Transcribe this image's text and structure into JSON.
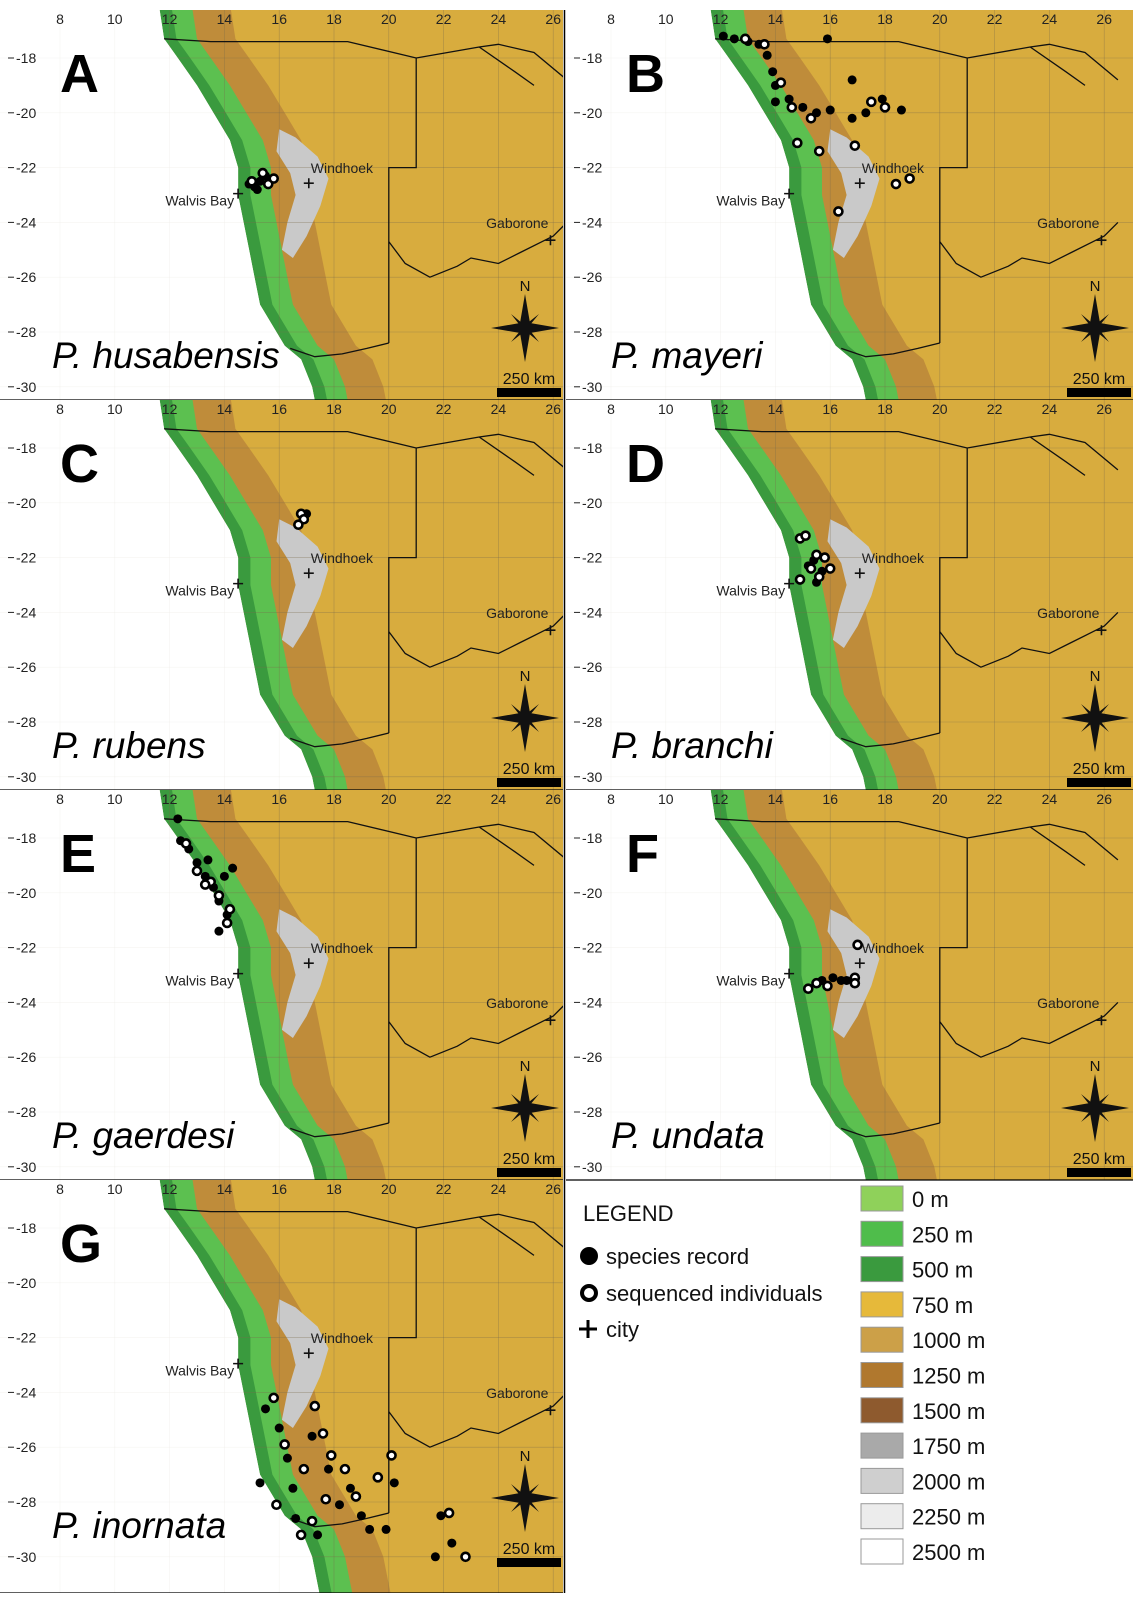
{
  "axes": {
    "xticks": [
      8,
      10,
      12,
      14,
      16,
      18,
      20,
      22,
      24,
      26
    ],
    "yticks": [
      -18,
      -20,
      -22,
      -24,
      -26,
      -28,
      -30
    ]
  },
  "cities": [
    {
      "name": "Windhoek",
      "lon": 17.08,
      "lat": -22.57
    },
    {
      "name": "Walvis Bay",
      "lon": 14.5,
      "lat": -22.95
    },
    {
      "name": "Gaborone",
      "lon": 25.9,
      "lat": -24.65
    }
  ],
  "north": "N",
  "scale_bar": "250 km",
  "panels": [
    {
      "letter": "A",
      "species": "P. husabensis",
      "records": [
        [
          14.9,
          -22.6
        ],
        [
          15.1,
          -22.7
        ],
        [
          15.3,
          -22.5
        ],
        [
          15.5,
          -22.3
        ],
        [
          15.2,
          -22.8
        ]
      ],
      "sequenced": [
        [
          15.4,
          -22.2
        ],
        [
          15.6,
          -22.6
        ],
        [
          15.8,
          -22.4
        ],
        [
          15.0,
          -22.5
        ]
      ]
    },
    {
      "letter": "B",
      "species": "P. mayeri",
      "records": [
        [
          12.1,
          -17.2
        ],
        [
          12.5,
          -17.3
        ],
        [
          13.0,
          -17.4
        ],
        [
          13.4,
          -17.5
        ],
        [
          13.7,
          -17.9
        ],
        [
          13.9,
          -18.5
        ],
        [
          14.0,
          -19.0
        ],
        [
          14.5,
          -19.5
        ],
        [
          15.0,
          -19.8
        ],
        [
          15.5,
          -20.0
        ],
        [
          16.0,
          -19.9
        ],
        [
          16.8,
          -20.2
        ],
        [
          17.3,
          -20.0
        ],
        [
          17.9,
          -19.5
        ],
        [
          18.6,
          -19.9
        ],
        [
          16.8,
          -18.8
        ],
        [
          15.9,
          -17.3
        ],
        [
          14.0,
          -19.6
        ]
      ],
      "sequenced": [
        [
          12.9,
          -17.3
        ],
        [
          13.6,
          -17.5
        ],
        [
          14.2,
          -18.9
        ],
        [
          14.6,
          -19.8
        ],
        [
          15.3,
          -20.2
        ],
        [
          14.8,
          -21.1
        ],
        [
          15.6,
          -21.4
        ],
        [
          16.9,
          -21.2
        ],
        [
          17.5,
          -19.6
        ],
        [
          18.0,
          -19.8
        ],
        [
          18.4,
          -22.6
        ],
        [
          18.9,
          -22.4
        ],
        [
          16.3,
          -23.6
        ]
      ]
    },
    {
      "letter": "C",
      "species": "P. rubens",
      "records": [
        [
          17.0,
          -20.4
        ]
      ],
      "sequenced": [
        [
          16.8,
          -20.4
        ],
        [
          16.9,
          -20.6
        ],
        [
          16.7,
          -20.8
        ]
      ]
    },
    {
      "letter": "D",
      "species": "P. branchi",
      "records": [
        [
          15.2,
          -22.3
        ],
        [
          15.4,
          -22.1
        ],
        [
          15.7,
          -22.5
        ],
        [
          15.5,
          -22.9
        ]
      ],
      "sequenced": [
        [
          14.9,
          -21.3
        ],
        [
          15.1,
          -21.2
        ],
        [
          15.5,
          -21.9
        ],
        [
          15.8,
          -22.0
        ],
        [
          15.3,
          -22.4
        ],
        [
          15.6,
          -22.7
        ],
        [
          14.9,
          -22.8
        ],
        [
          16.0,
          -22.4
        ]
      ]
    },
    {
      "letter": "E",
      "species": "P. gaerdesi",
      "records": [
        [
          12.3,
          -17.3
        ],
        [
          12.4,
          -18.1
        ],
        [
          12.7,
          -18.4
        ],
        [
          13.0,
          -18.9
        ],
        [
          13.3,
          -19.4
        ],
        [
          13.6,
          -19.8
        ],
        [
          13.8,
          -20.3
        ],
        [
          14.1,
          -20.8
        ],
        [
          13.4,
          -18.8
        ],
        [
          14.0,
          -19.4
        ],
        [
          14.3,
          -19.1
        ],
        [
          13.8,
          -21.4
        ]
      ],
      "sequenced": [
        [
          12.6,
          -18.2
        ],
        [
          13.0,
          -19.2
        ],
        [
          13.5,
          -19.6
        ],
        [
          13.8,
          -20.1
        ],
        [
          14.2,
          -20.6
        ],
        [
          14.1,
          -21.1
        ],
        [
          13.3,
          -19.7
        ]
      ]
    },
    {
      "letter": "F",
      "species": "P. undata",
      "records": [
        [
          15.7,
          -23.2
        ],
        [
          16.1,
          -23.1
        ],
        [
          16.6,
          -23.2
        ],
        [
          16.4,
          -23.2
        ]
      ],
      "sequenced": [
        [
          15.2,
          -23.5
        ],
        [
          15.5,
          -23.3
        ],
        [
          15.9,
          -23.4
        ],
        [
          17.0,
          -21.9
        ],
        [
          16.9,
          -23.1
        ],
        [
          16.9,
          -23.3
        ]
      ]
    },
    {
      "letter": "G",
      "species": "P. inornata",
      "records": [
        [
          15.3,
          -27.3
        ],
        [
          15.5,
          -24.6
        ],
        [
          16.0,
          -25.3
        ],
        [
          16.3,
          -26.4
        ],
        [
          16.5,
          -27.5
        ],
        [
          16.6,
          -28.6
        ],
        [
          17.2,
          -25.6
        ],
        [
          17.8,
          -26.8
        ],
        [
          18.2,
          -28.1
        ],
        [
          18.6,
          -27.5
        ],
        [
          19.0,
          -28.5
        ],
        [
          19.3,
          -29.0
        ],
        [
          20.2,
          -27.3
        ],
        [
          19.9,
          -29.0
        ],
        [
          21.9,
          -28.5
        ],
        [
          22.3,
          -29.5
        ],
        [
          21.7,
          -30.0
        ],
        [
          17.4,
          -29.2
        ]
      ],
      "sequenced": [
        [
          15.8,
          -24.2
        ],
        [
          16.2,
          -25.9
        ],
        [
          16.9,
          -26.8
        ],
        [
          17.3,
          -24.5
        ],
        [
          17.6,
          -25.5
        ],
        [
          17.9,
          -26.3
        ],
        [
          18.4,
          -26.8
        ],
        [
          17.7,
          -27.9
        ],
        [
          18.8,
          -27.8
        ],
        [
          19.6,
          -27.1
        ],
        [
          20.1,
          -26.3
        ],
        [
          16.8,
          -29.2
        ],
        [
          17.2,
          -28.7
        ],
        [
          22.2,
          -28.4
        ],
        [
          22.8,
          -30.0
        ],
        [
          15.9,
          -28.1
        ]
      ]
    }
  ],
  "legend": {
    "title": "LEGEND",
    "record": "species record",
    "sequenced": "sequenced individuals",
    "city": "city",
    "elevation": [
      {
        "label": "0 m",
        "color": "#8fd15a"
      },
      {
        "label": "250 m",
        "color": "#4fbd4b"
      },
      {
        "label": "500 m",
        "color": "#3a9a3e"
      },
      {
        "label": "750 m",
        "color": "#e6b93a"
      },
      {
        "label": "1000 m",
        "color": "#cca048"
      },
      {
        "label": "1250 m",
        "color": "#b0782e"
      },
      {
        "label": "1500 m",
        "color": "#8e5a2e"
      },
      {
        "label": "1750 m",
        "color": "#a9a9a9"
      },
      {
        "label": "2000 m",
        "color": "#cfcfcf"
      },
      {
        "label": "2250 m",
        "color": "#ececec"
      },
      {
        "label": "2500 m",
        "color": "#ffffff"
      }
    ]
  }
}
